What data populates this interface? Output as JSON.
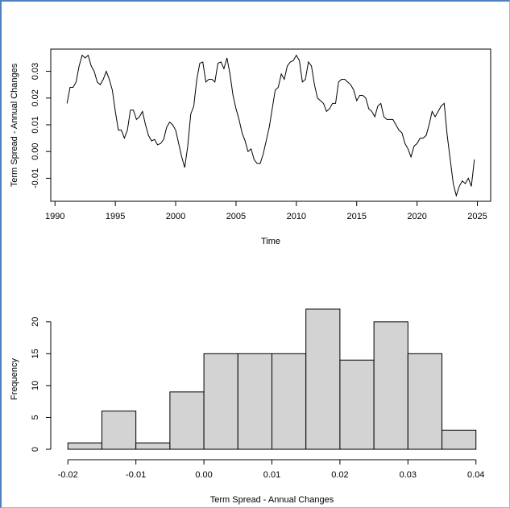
{
  "chart_data": [
    {
      "type": "line",
      "x_label": "Time",
      "y_label": "Term Spread - Annual Changes",
      "color": "#000000",
      "x": [
        1991,
        1991.25,
        1991.5,
        1991.75,
        1992,
        1992.25,
        1992.5,
        1992.75,
        1993,
        1993.25,
        1993.5,
        1993.75,
        1994,
        1994.25,
        1994.5,
        1994.75,
        1995,
        1995.25,
        1995.5,
        1995.75,
        1996,
        1996.25,
        1996.5,
        1996.75,
        1997,
        1997.25,
        1997.5,
        1997.75,
        1998,
        1998.25,
        1998.5,
        1998.75,
        1999,
        1999.25,
        1999.5,
        1999.75,
        2000,
        2000.25,
        2000.5,
        2000.75,
        2001,
        2001.25,
        2001.5,
        2001.75,
        2002,
        2002.25,
        2002.5,
        2002.75,
        2003,
        2003.25,
        2003.5,
        2003.75,
        2004,
        2004.25,
        2004.5,
        2004.75,
        2005,
        2005.25,
        2005.5,
        2005.75,
        2006,
        2006.25,
        2006.5,
        2006.75,
        2007,
        2007.25,
        2007.5,
        2007.75,
        2008,
        2008.25,
        2008.5,
        2008.75,
        2009,
        2009.25,
        2009.5,
        2009.75,
        2010,
        2010.25,
        2010.5,
        2010.75,
        2011,
        2011.25,
        2011.5,
        2011.75,
        2012,
        2012.25,
        2012.5,
        2012.75,
        2013,
        2013.25,
        2013.5,
        2013.75,
        2014,
        2014.25,
        2014.5,
        2014.75,
        2015,
        2015.25,
        2015.5,
        2015.75,
        2016,
        2016.25,
        2016.5,
        2016.75,
        2017,
        2017.25,
        2017.5,
        2017.75,
        2018,
        2018.25,
        2018.5,
        2018.75,
        2019,
        2019.25,
        2019.5,
        2019.75,
        2020,
        2020.25,
        2020.5,
        2020.75,
        2021,
        2021.25,
        2021.5,
        2021.75,
        2022,
        2022.25,
        2022.5,
        2022.75,
        2023,
        2023.25,
        2023.5,
        2023.75,
        2024,
        2024.25,
        2024.5,
        2024.75
      ],
      "values": [
        0.018,
        0.024,
        0.024,
        0.026,
        0.032,
        0.036,
        0.035,
        0.036,
        0.032,
        0.03,
        0.026,
        0.025,
        0.027,
        0.03,
        0.027,
        0.023,
        0.015,
        0.008,
        0.008,
        0.005,
        0.008,
        0.0155,
        0.0155,
        0.012,
        0.013,
        0.015,
        0.01,
        0.006,
        0.004,
        0.0045,
        0.0025,
        0.003,
        0.0045,
        0.009,
        0.011,
        0.01,
        0.008,
        0.003,
        -0.002,
        -0.006,
        0.002,
        0.014,
        0.017,
        0.027,
        0.033,
        0.0335,
        0.026,
        0.027,
        0.027,
        0.026,
        0.033,
        0.0335,
        0.031,
        0.035,
        0.029,
        0.021,
        0.016,
        0.012,
        0.007,
        0.004,
        0,
        0.001,
        -0.003,
        -0.0045,
        -0.0045,
        -0.001,
        0.004,
        0.009,
        0.016,
        0.023,
        0.024,
        0.029,
        0.027,
        0.032,
        0.0335,
        0.034,
        0.036,
        0.034,
        0.026,
        0.027,
        0.0335,
        0.032,
        0.025,
        0.02,
        0.019,
        0.018,
        0.015,
        0.016,
        0.018,
        0.018,
        0.026,
        0.027,
        0.027,
        0.026,
        0.025,
        0.023,
        0.019,
        0.021,
        0.021,
        0.02,
        0.016,
        0.015,
        0.013,
        0.017,
        0.018,
        0.013,
        0.012,
        0.012,
        0.012,
        0.01,
        0.008,
        0.007,
        0.003,
        0.001,
        -0.002,
        0.002,
        0.003,
        0.005,
        0.005,
        0.006,
        0.01,
        0.015,
        0.013,
        0.015,
        0.017,
        0.018,
        0.006,
        -0.003,
        -0.012,
        -0.0165,
        -0.013,
        -0.011,
        -0.012,
        -0.01,
        -0.013,
        -0.003
      ],
      "xlim": [
        1989.65,
        2026.1
      ],
      "xticks": [
        1990,
        1995,
        2000,
        2005,
        2010,
        2015,
        2020,
        2025
      ],
      "ylim": [
        -0.0186,
        0.0383
      ],
      "yticks": [
        -0.01,
        {
          "value": 0,
          "label": "0.00"
        },
        0.01,
        0.02,
        0.03
      ]
    },
    {
      "type": "histogram",
      "x_label": "Term Spread - Annual Changes",
      "y_label": "Frequency",
      "color": "#d3d3d3",
      "bins": [
        -0.02,
        -0.015,
        -0.01,
        -0.005,
        0,
        0.005,
        0.01,
        0.015,
        0.02,
        0.025,
        0.03,
        0.035,
        0.04
      ],
      "values": [
        1,
        6,
        1,
        9,
        15,
        15,
        15,
        22,
        14,
        20,
        15,
        3
      ],
      "xlim": [
        -0.0224,
        0.0424
      ],
      "xticks": [
        -0.02,
        -0.01,
        {
          "value": 0,
          "label": "0.00"
        },
        0.01,
        0.02,
        0.03,
        0.04
      ],
      "ylim": [
        -0.88,
        22.88
      ],
      "yticks": [
        0,
        5,
        10,
        15,
        20
      ]
    }
  ]
}
